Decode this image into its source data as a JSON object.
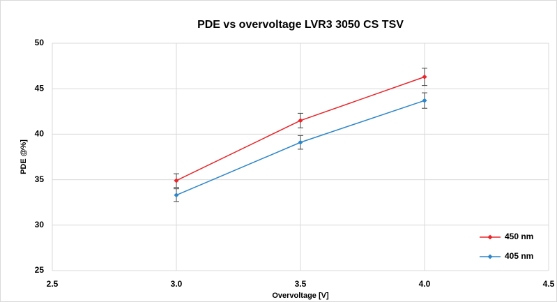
{
  "chart_data": {
    "type": "line",
    "title": "PDE vs overvoltage LVR3 3050 CS TSV",
    "x_label": "Overvoltage [V]",
    "y_label": "PDE @%]",
    "x": [
      3.0,
      3.5,
      4.0
    ],
    "series": [
      {
        "name": "450 nm",
        "color": "#e8262b",
        "values": [
          34.9,
          41.5,
          46.3
        ],
        "errors": [
          0.75,
          0.8,
          0.95
        ]
      },
      {
        "name": "405 nm",
        "color": "#2e86c8",
        "values": [
          33.3,
          39.1,
          43.7
        ],
        "errors": [
          0.7,
          0.75,
          0.85
        ]
      }
    ],
    "xlim": [
      2.5,
      4.5
    ],
    "xticks": [
      2.5,
      {
        "value": 3,
        "label": "3.0"
      },
      3.5,
      {
        "value": 4,
        "label": "4.0"
      },
      4.5
    ],
    "ylim": [
      25,
      50
    ],
    "yticks": [
      25,
      30,
      35,
      40,
      45,
      50
    ],
    "grid": true,
    "legend": "lower right"
  }
}
